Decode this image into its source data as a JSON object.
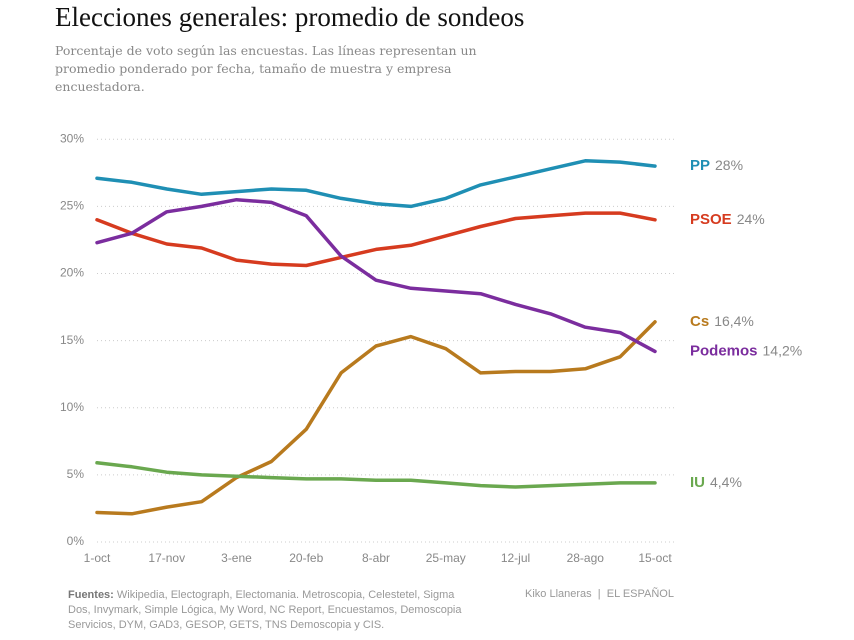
{
  "chart_data": {
    "type": "line",
    "title": "Elecciones generales: promedio de sondeos",
    "subtitle": "Porcentaje de voto según las encuestas. Las líneas representan un promedio ponderado por fecha, tamaño de muestra y empresa encuestadora.",
    "source_label": "Fuentes:",
    "source": "Wikipedia, Electograph, Electomania. Metroscopia, Celestetel, Sigma Dos, Invymark, Simple Lógica, My Word, NC Report, Encuestamos, Demoscopia Servicios, DYM, GAD3, GESOP, GETS, TNS Demoscopia y CIS.",
    "credit": "Kiko Llaneras  |  EL ESPAÑOL",
    "categories": [
      "1-oct",
      null,
      "17-nov",
      null,
      "3-ene",
      null,
      "20-feb",
      null,
      "8-abr",
      null,
      "25-may",
      null,
      "12-jul",
      null,
      "28-ago",
      null,
      "15-oct"
    ],
    "ylim": [
      0,
      33.3
    ],
    "yticks": [
      {
        "value": 0,
        "label": "0%"
      },
      {
        "value": 5,
        "label": "5%"
      },
      {
        "value": 10,
        "label": "10%"
      },
      {
        "value": 15,
        "label": "15%"
      },
      {
        "value": 20,
        "label": "20%"
      },
      {
        "value": 25,
        "label": "25%"
      },
      {
        "value": 30,
        "label": "30%"
      }
    ],
    "grid": true,
    "series": [
      {
        "name": "PP",
        "color": "#1f8fb4",
        "values": [
          27.1,
          26.8,
          26.3,
          25.9,
          26.1,
          26.3,
          26.2,
          25.6,
          25.2,
          25.0,
          25.6,
          26.6,
          27.2,
          27.8,
          28.4,
          28.3,
          28.0
        ],
        "value_labels": [
          null,
          null,
          null,
          null,
          null,
          null,
          null,
          null,
          null,
          null,
          null,
          null,
          null,
          null,
          null,
          null,
          "28%"
        ]
      },
      {
        "name": "PSOE",
        "color": "#d63b1f",
        "values": [
          24.0,
          23.0,
          22.2,
          21.9,
          21.0,
          20.7,
          20.6,
          21.2,
          21.8,
          22.1,
          22.8,
          23.5,
          24.1,
          24.3,
          24.5,
          24.5,
          24.0
        ],
        "value_labels": [
          null,
          null,
          null,
          null,
          null,
          null,
          null,
          null,
          null,
          null,
          null,
          null,
          null,
          null,
          null,
          null,
          "24%"
        ]
      },
      {
        "name": "Cs",
        "color": "#b87a1e",
        "values": [
          2.2,
          2.1,
          2.6,
          3.0,
          4.8,
          6.0,
          8.4,
          12.6,
          14.6,
          15.3,
          14.4,
          12.6,
          12.7,
          12.7,
          12.9,
          13.8,
          16.4
        ],
        "value_labels": [
          null,
          null,
          null,
          null,
          null,
          null,
          null,
          null,
          null,
          null,
          null,
          null,
          null,
          null,
          null,
          null,
          "16,4%"
        ]
      },
      {
        "name": "Podemos",
        "color": "#7b2d9e",
        "values": [
          22.3,
          23.0,
          24.6,
          25.0,
          25.5,
          25.3,
          24.3,
          21.3,
          19.5,
          18.9,
          18.7,
          18.5,
          17.7,
          17.0,
          16.0,
          15.6,
          14.2
        ],
        "value_labels": [
          null,
          null,
          null,
          null,
          null,
          null,
          null,
          null,
          null,
          null,
          null,
          null,
          null,
          null,
          null,
          null,
          "14,2%"
        ]
      },
      {
        "name": "IU",
        "color": "#6aa84f",
        "values": [
          5.9,
          5.6,
          5.2,
          5.0,
          4.9,
          4.8,
          4.7,
          4.7,
          4.6,
          4.6,
          4.4,
          4.2,
          4.1,
          4.2,
          4.3,
          4.4,
          4.4
        ],
        "value_labels": [
          null,
          null,
          null,
          null,
          null,
          null,
          null,
          null,
          null,
          null,
          null,
          null,
          null,
          null,
          null,
          null,
          "4,4%"
        ]
      }
    ]
  }
}
